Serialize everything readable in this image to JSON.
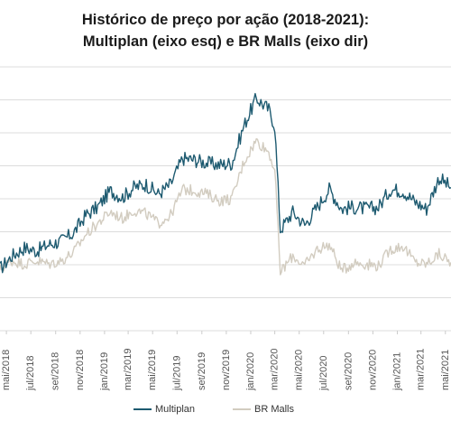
{
  "title_line1": "Histórico de preço por ação (2018-2021):",
  "title_line2": "Multiplan (eixo esq) e BR Malls (eixo dir)",
  "chart_data": {
    "type": "line",
    "title": "Histórico de preço por ação (2018-2021): Multiplan (eixo esq) e BR Malls (eixo dir)",
    "xlabel": "",
    "ylabel": "",
    "x_tick_labels": [
      "mai/2018",
      "jul/2018",
      "set/2018",
      "nov/2018",
      "jan/2019",
      "mar/2019",
      "mai/2019",
      "jul/2019",
      "set/2019",
      "nov/2019",
      "jan/2020",
      "mar/2020",
      "mai/2020",
      "jul/2020",
      "set/2020",
      "nov/2020",
      "jan/2021",
      "mar/2021",
      "mai/2021"
    ],
    "y_tick_labels_visible": false,
    "grid": true,
    "legend_position": "bottom",
    "x": [
      "2018-04-15",
      "2018-05-15",
      "2018-06-15",
      "2018-07-15",
      "2018-08-15",
      "2018-09-15",
      "2018-10-15",
      "2018-11-15",
      "2018-12-15",
      "2019-01-15",
      "2019-02-15",
      "2019-03-15",
      "2019-04-15",
      "2019-05-15",
      "2019-06-15",
      "2019-07-15",
      "2019-08-15",
      "2019-09-15",
      "2019-10-15",
      "2019-11-15",
      "2019-12-15",
      "2020-01-15",
      "2020-02-15",
      "2020-03-01",
      "2020-03-15",
      "2020-04-15",
      "2020-05-15",
      "2020-06-15",
      "2020-07-15",
      "2020-08-15",
      "2020-09-15",
      "2020-10-15",
      "2020-11-15",
      "2020-12-15",
      "2021-01-15",
      "2021-02-15",
      "2021-03-15",
      "2021-04-15",
      "2021-05-15"
    ],
    "series": [
      {
        "name": "Multiplan",
        "color": "#1d5a70",
        "values": [
          0.38,
          0.46,
          0.51,
          0.49,
          0.53,
          0.55,
          0.6,
          0.71,
          0.76,
          0.86,
          0.82,
          0.88,
          0.9,
          0.84,
          0.9,
          1.06,
          1.05,
          1.03,
          1.02,
          1.03,
          1.26,
          1.43,
          1.36,
          1.26,
          0.62,
          0.73,
          0.65,
          0.76,
          0.87,
          0.75,
          0.76,
          0.75,
          0.76,
          0.87,
          0.86,
          0.79,
          0.75,
          0.94,
          0.88
        ]
      },
      {
        "name": "BR Malls",
        "color": "#d2ccc0",
        "values": [
          0.38,
          0.43,
          0.41,
          0.43,
          0.41,
          0.43,
          0.48,
          0.59,
          0.66,
          0.73,
          0.69,
          0.74,
          0.72,
          0.66,
          0.71,
          0.87,
          0.86,
          0.84,
          0.8,
          0.81,
          1.04,
          1.17,
          1.1,
          0.99,
          0.36,
          0.46,
          0.4,
          0.5,
          0.53,
          0.37,
          0.42,
          0.41,
          0.4,
          0.5,
          0.52,
          0.42,
          0.41,
          0.47,
          0.42
        ]
      }
    ]
  }
}
